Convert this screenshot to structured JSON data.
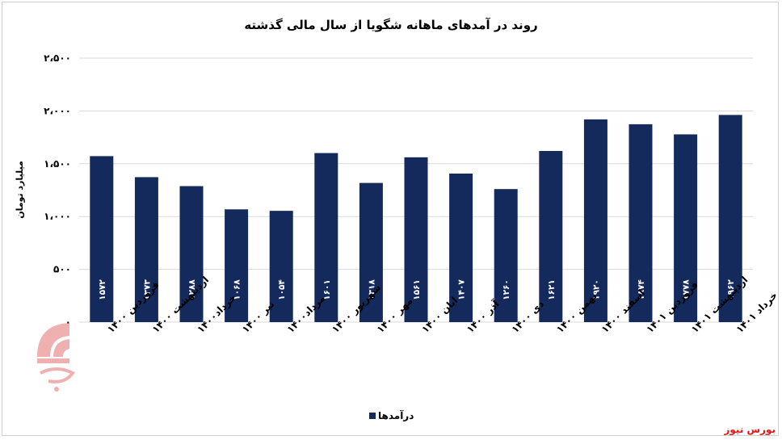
{
  "chart_data": {
    "type": "bar",
    "title": "روند در آمدهای ماهانه شگویا از سال مالی گذشته",
    "ylabel": "میلیارد تومان",
    "ylim": [
      0,
      2500
    ],
    "yticks": [
      "۰",
      "۵۰۰",
      "۱،۰۰۰",
      "۱،۵۰۰",
      "۲،۰۰۰",
      "۲،۵۰۰"
    ],
    "ytick_values": [
      0,
      500,
      1000,
      1500,
      2000,
      2500
    ],
    "grid": true,
    "legend_position": "bottom",
    "categories": [
      "فروردین ۱۴۰۰",
      "اردیبهشت ۱۴۰۰",
      "خرداد۱۴۰۰",
      "تیر ۱۴۰۰",
      "مرداد۱۴۰۰",
      "شهریور ۱۴۰۰",
      "مهر ۱۴۰۰",
      "ابان ۱۴۰۰",
      "آذر ۱۴۰۰",
      "دی ۱۴۰۰",
      "بهمن ۱۴۰۰",
      "اسفند ۱۴۰۰",
      "فروردین ۱۴۰۱",
      "اردیبهشت ۱۴۰۱",
      "خرداد ۱۴۰۱"
    ],
    "series": [
      {
        "name": "درآمدها",
        "color": "#142a5c",
        "values": [
          1572,
          1373,
          1288,
          1068,
          1054,
          1601,
          1318,
          1561,
          1407,
          1260,
          1621,
          1920,
          1874,
          1778,
          1962
        ],
        "labels": [
          "۱۵۷۲",
          "۱۳۷۳",
          "۱۲۸۸",
          "۱۰۶۸",
          "۱۰۵۴",
          "۱۶۰۱",
          "۱۳۱۸",
          "۱۵۶۱",
          "۱۴۰۷",
          "۱۲۶۰",
          "۱۶۲۱",
          "۱۹۲۰",
          "۱۸۷۴",
          "۱۷۷۸",
          "۱۹۶۲"
        ]
      }
    ]
  },
  "source": "بورس نیوز",
  "watermark_text": "بورس نیوز",
  "colors": {
    "bar": "#142a5c",
    "grid": "#d9d9d9",
    "source": "#e01818",
    "logo": "#d42020"
  }
}
